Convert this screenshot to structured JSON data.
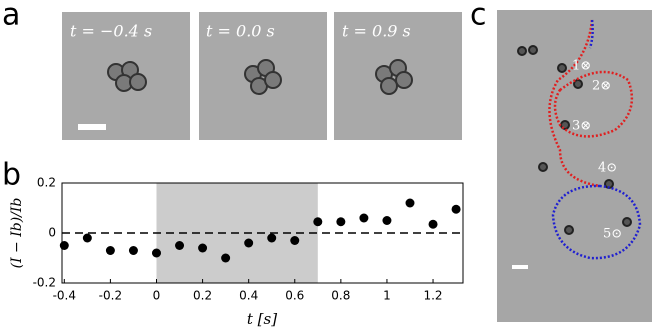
{
  "panel_a": {
    "label": "a",
    "frames": [
      "t = −0.4 s",
      "t = 0.0 s",
      "t = 0.9 s"
    ]
  },
  "panel_b": {
    "label": "b"
  },
  "panel_c": {
    "label": "c",
    "markers": [
      "1⊗",
      "2⊗",
      "3⊗",
      "4⊙",
      "5⊙"
    ]
  },
  "chart_data": {
    "type": "scatter",
    "x_label": "t [s]",
    "y_label": "(I − Ib)/Ib",
    "x": [
      -0.4,
      -0.3,
      -0.2,
      -0.1,
      0.0,
      0.1,
      0.2,
      0.3,
      0.4,
      0.5,
      0.6,
      0.7,
      0.8,
      0.9,
      1.0,
      1.1,
      1.2,
      1.3
    ],
    "values": [
      -0.05,
      -0.02,
      -0.07,
      -0.07,
      -0.08,
      -0.05,
      -0.06,
      -0.1,
      -0.04,
      -0.02,
      -0.03,
      0.045,
      0.045,
      0.06,
      0.05,
      0.12,
      0.035,
      0.095
    ],
    "color": "#000000",
    "xlim": [
      -0.41,
      1.33
    ],
    "ylim": [
      -0.2,
      0.2
    ],
    "xticks": [
      -0.4,
      -0.2,
      0,
      0.2,
      0.4,
      0.6,
      0.8,
      1,
      1.2
    ],
    "yticks": [
      -0.2,
      0,
      0.2
    ],
    "highlight_range": [
      0,
      0.7
    ],
    "highlight_color": "#cccccc",
    "reference_line": 0
  }
}
